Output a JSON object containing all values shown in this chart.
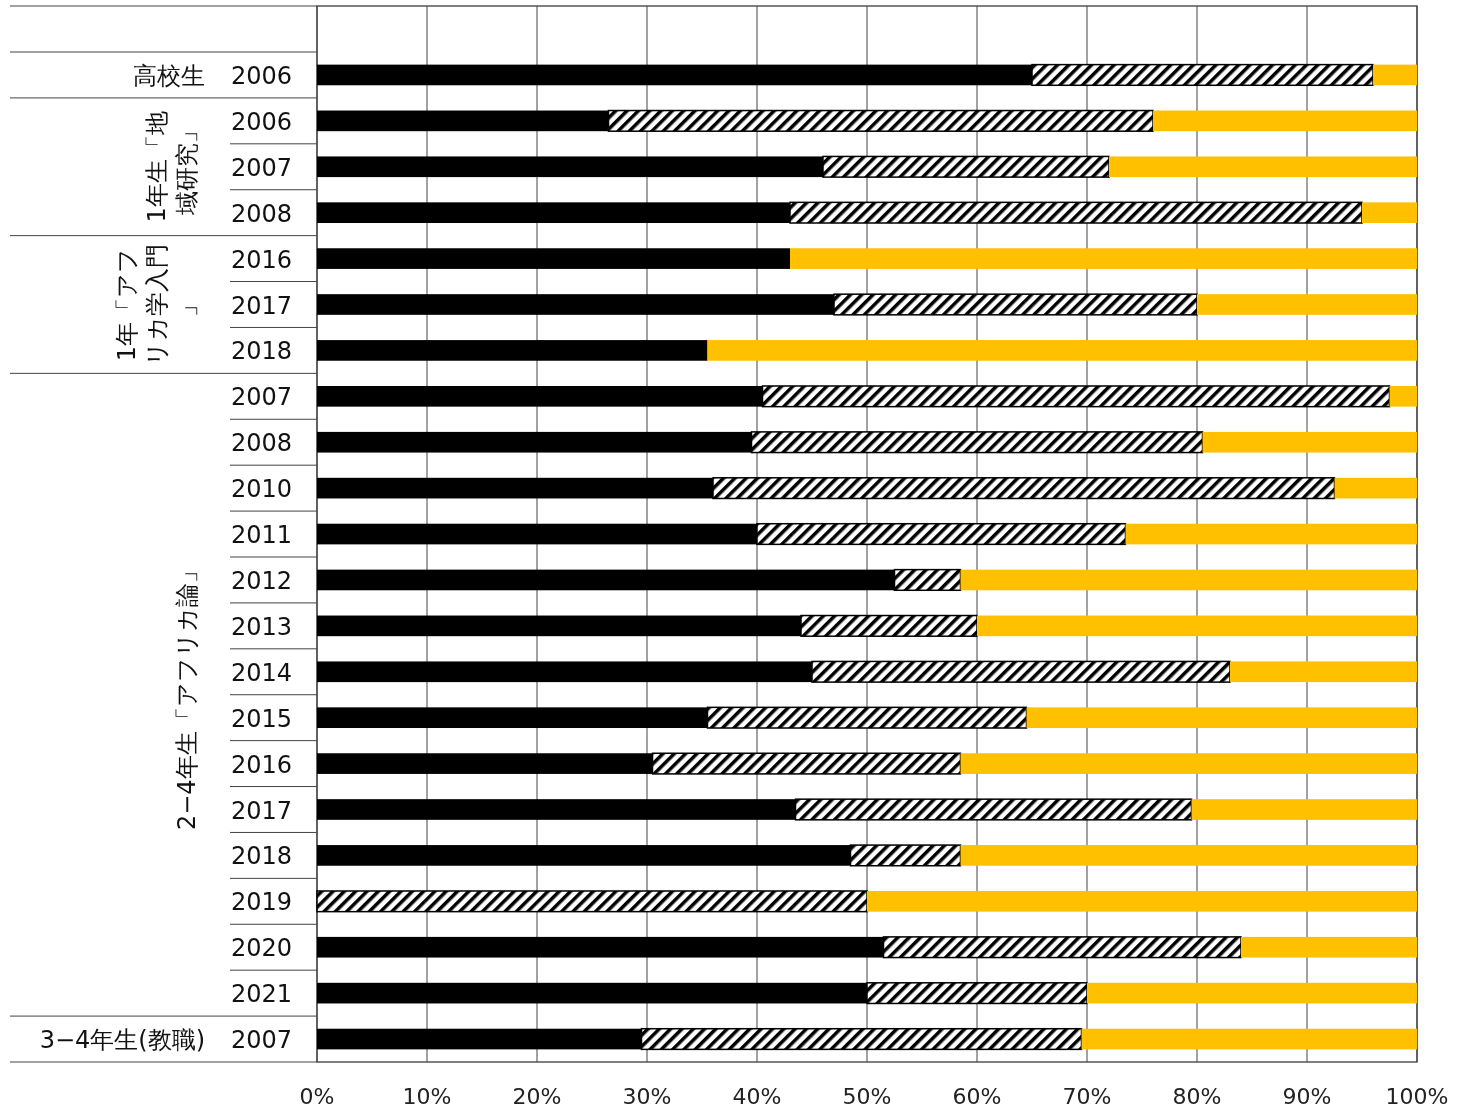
{
  "chart_data": {
    "type": "bar",
    "orientation": "horizontal",
    "stacked": true,
    "grid": "x",
    "categories": [
      "2006",
      "2006",
      "2007",
      "2008",
      "2016",
      "2017",
      "2018",
      "2007",
      "2008",
      "2010",
      "2011",
      "2012",
      "2013",
      "2014",
      "2015",
      "2016",
      "2017",
      "2018",
      "2019",
      "2020",
      "2021",
      "2007"
    ],
    "series": [
      {
        "color": "#000000",
        "values": [
          65,
          26.5,
          46,
          43,
          43,
          47,
          35.5,
          40.5,
          39.5,
          36,
          40,
          52.5,
          44,
          45,
          35.5,
          30.5,
          43.5,
          48.5,
          0,
          51.5,
          50,
          29.5
        ]
      },
      {
        "color": "#000000",
        "values": [
          31,
          49.5,
          26,
          52,
          0,
          33,
          0,
          57,
          41,
          56.5,
          33.5,
          6,
          16,
          38,
          29,
          28,
          36,
          10,
          50,
          32.5,
          20,
          40
        ]
      },
      {
        "color": "#ffc000",
        "values": [
          4,
          24,
          28,
          5,
          57,
          20,
          64.5,
          2.5,
          19.5,
          7.5,
          26.5,
          41.5,
          40,
          17,
          35.5,
          41.5,
          20.5,
          41.5,
          50,
          16,
          30,
          30.5
        ]
      }
    ],
    "xlim": [
      0,
      100
    ],
    "xticks": [
      {
        "value": 0,
        "label": "0%"
      },
      {
        "value": 10,
        "label": "10%"
      },
      {
        "value": 20,
        "label": "20%"
      },
      {
        "value": 30,
        "label": "30%"
      },
      {
        "value": 40,
        "label": "40%"
      },
      {
        "value": 50,
        "label": "50%"
      },
      {
        "value": 60,
        "label": "60%"
      },
      {
        "value": 70,
        "label": "70%"
      },
      {
        "value": 80,
        "label": "80%"
      },
      {
        "value": 90,
        "label": "90%"
      },
      {
        "value": 100,
        "label": "100%"
      }
    ],
    "annotations": [
      "高校生",
      "1年生「地域研究」",
      "1年「アフリカ学入門」",
      "2−4年生「アフリカ論」",
      "3−4年生(教職)"
    ]
  }
}
